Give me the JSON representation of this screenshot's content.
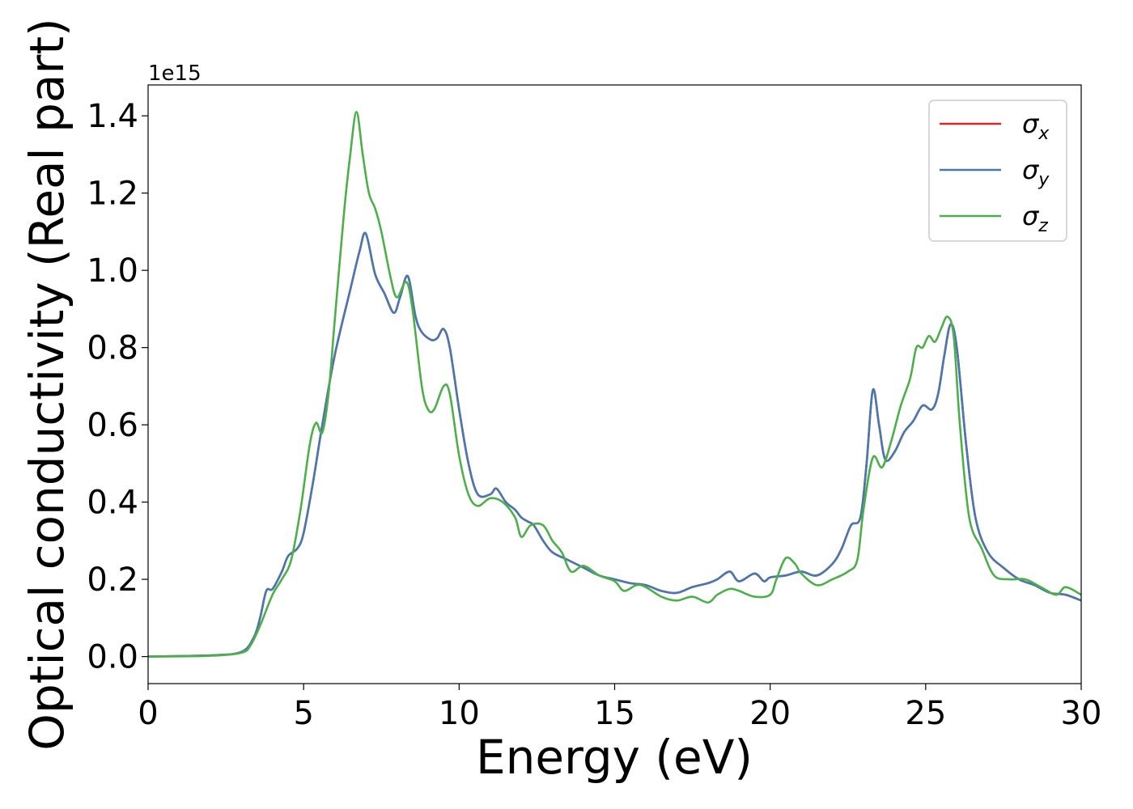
{
  "chart_data": {
    "type": "line",
    "title": "",
    "xlabel": "Energy (eV)",
    "ylabel": "Optical conductivity (Real part)",
    "y_offset_label": "1e15",
    "y_scale": 1000000000000000.0,
    "xlim": [
      0,
      30
    ],
    "ylim": [
      -0.07,
      1.48
    ],
    "x_ticks": [
      0,
      5,
      10,
      15,
      20,
      25,
      30
    ],
    "x_tick_labels": [
      "0",
      "5",
      "10",
      "15",
      "20",
      "25",
      "30"
    ],
    "y_ticks": [
      0.0,
      0.2,
      0.4,
      0.6,
      0.8,
      1.0,
      1.2,
      1.4
    ],
    "y_tick_labels": [
      "0.0",
      "0.2",
      "0.4",
      "0.6",
      "0.8",
      "1.0",
      "1.2",
      "1.4"
    ],
    "grid": false,
    "legend_position": "top-right",
    "series": [
      {
        "name": "σx",
        "symbol": "σ",
        "subscript": "x",
        "color": "#d62728",
        "points": [
          [
            0,
            0
          ],
          [
            2,
            0.003
          ],
          [
            3,
            0.012
          ],
          [
            3.4,
            0.05
          ],
          [
            3.6,
            0.1
          ],
          [
            3.8,
            0.17
          ],
          [
            4.0,
            0.175
          ],
          [
            4.3,
            0.22
          ],
          [
            4.5,
            0.26
          ],
          [
            4.8,
            0.28
          ],
          [
            5.0,
            0.32
          ],
          [
            5.3,
            0.45
          ],
          [
            5.6,
            0.6
          ],
          [
            6.0,
            0.78
          ],
          [
            6.5,
            0.95
          ],
          [
            6.8,
            1.05
          ],
          [
            7.0,
            1.095
          ],
          [
            7.3,
            0.99
          ],
          [
            7.6,
            0.94
          ],
          [
            7.9,
            0.89
          ],
          [
            8.1,
            0.93
          ],
          [
            8.35,
            0.985
          ],
          [
            8.6,
            0.88
          ],
          [
            8.8,
            0.84
          ],
          [
            9.1,
            0.82
          ],
          [
            9.3,
            0.825
          ],
          [
            9.5,
            0.848
          ],
          [
            9.7,
            0.8
          ],
          [
            10.0,
            0.64
          ],
          [
            10.3,
            0.5
          ],
          [
            10.6,
            0.42
          ],
          [
            11.0,
            0.42
          ],
          [
            11.2,
            0.435
          ],
          [
            11.5,
            0.4
          ],
          [
            11.8,
            0.38
          ],
          [
            12.0,
            0.36
          ],
          [
            12.2,
            0.35
          ],
          [
            12.4,
            0.34
          ],
          [
            12.7,
            0.3
          ],
          [
            13.0,
            0.27
          ],
          [
            13.5,
            0.25
          ],
          [
            14.0,
            0.23
          ],
          [
            14.5,
            0.21
          ],
          [
            15.0,
            0.2
          ],
          [
            15.5,
            0.19
          ],
          [
            16.0,
            0.185
          ],
          [
            16.5,
            0.17
          ],
          [
            17.0,
            0.165
          ],
          [
            17.5,
            0.18
          ],
          [
            18.0,
            0.19
          ],
          [
            18.3,
            0.2
          ],
          [
            18.7,
            0.22
          ],
          [
            19.0,
            0.195
          ],
          [
            19.5,
            0.215
          ],
          [
            19.8,
            0.195
          ],
          [
            20.0,
            0.205
          ],
          [
            20.5,
            0.21
          ],
          [
            21.0,
            0.22
          ],
          [
            21.5,
            0.21
          ],
          [
            22.0,
            0.24
          ],
          [
            22.3,
            0.28
          ],
          [
            22.6,
            0.34
          ],
          [
            22.9,
            0.36
          ],
          [
            23.1,
            0.5
          ],
          [
            23.3,
            0.69
          ],
          [
            23.5,
            0.6
          ],
          [
            23.7,
            0.51
          ],
          [
            24.0,
            0.53
          ],
          [
            24.3,
            0.58
          ],
          [
            24.6,
            0.61
          ],
          [
            24.9,
            0.65
          ],
          [
            25.2,
            0.64
          ],
          [
            25.4,
            0.68
          ],
          [
            25.6,
            0.78
          ],
          [
            25.8,
            0.86
          ],
          [
            26.0,
            0.8
          ],
          [
            26.3,
            0.55
          ],
          [
            26.6,
            0.36
          ],
          [
            27.0,
            0.27
          ],
          [
            27.5,
            0.23
          ],
          [
            28.0,
            0.2
          ],
          [
            28.5,
            0.185
          ],
          [
            29.0,
            0.165
          ],
          [
            29.5,
            0.16
          ],
          [
            30.0,
            0.145
          ]
        ]
      },
      {
        "name": "σy",
        "symbol": "σ",
        "subscript": "y",
        "color": "#4878b0",
        "points": [
          [
            0,
            0
          ],
          [
            2,
            0.003
          ],
          [
            3,
            0.012
          ],
          [
            3.4,
            0.05
          ],
          [
            3.6,
            0.1
          ],
          [
            3.8,
            0.17
          ],
          [
            4.0,
            0.175
          ],
          [
            4.3,
            0.22
          ],
          [
            4.5,
            0.26
          ],
          [
            4.8,
            0.28
          ],
          [
            5.0,
            0.32
          ],
          [
            5.3,
            0.45
          ],
          [
            5.6,
            0.6
          ],
          [
            6.0,
            0.78
          ],
          [
            6.5,
            0.95
          ],
          [
            6.8,
            1.05
          ],
          [
            7.0,
            1.095
          ],
          [
            7.3,
            0.99
          ],
          [
            7.6,
            0.94
          ],
          [
            7.9,
            0.89
          ],
          [
            8.1,
            0.93
          ],
          [
            8.35,
            0.985
          ],
          [
            8.6,
            0.88
          ],
          [
            8.8,
            0.84
          ],
          [
            9.1,
            0.82
          ],
          [
            9.3,
            0.825
          ],
          [
            9.5,
            0.848
          ],
          [
            9.7,
            0.8
          ],
          [
            10.0,
            0.64
          ],
          [
            10.3,
            0.5
          ],
          [
            10.6,
            0.42
          ],
          [
            11.0,
            0.42
          ],
          [
            11.2,
            0.435
          ],
          [
            11.5,
            0.4
          ],
          [
            11.8,
            0.38
          ],
          [
            12.0,
            0.36
          ],
          [
            12.2,
            0.35
          ],
          [
            12.4,
            0.34
          ],
          [
            12.7,
            0.3
          ],
          [
            13.0,
            0.27
          ],
          [
            13.5,
            0.25
          ],
          [
            14.0,
            0.23
          ],
          [
            14.5,
            0.21
          ],
          [
            15.0,
            0.2
          ],
          [
            15.5,
            0.19
          ],
          [
            16.0,
            0.185
          ],
          [
            16.5,
            0.17
          ],
          [
            17.0,
            0.165
          ],
          [
            17.5,
            0.18
          ],
          [
            18.0,
            0.19
          ],
          [
            18.3,
            0.2
          ],
          [
            18.7,
            0.22
          ],
          [
            19.0,
            0.195
          ],
          [
            19.5,
            0.215
          ],
          [
            19.8,
            0.195
          ],
          [
            20.0,
            0.205
          ],
          [
            20.5,
            0.21
          ],
          [
            21.0,
            0.22
          ],
          [
            21.5,
            0.21
          ],
          [
            22.0,
            0.24
          ],
          [
            22.3,
            0.28
          ],
          [
            22.6,
            0.34
          ],
          [
            22.9,
            0.36
          ],
          [
            23.1,
            0.5
          ],
          [
            23.3,
            0.69
          ],
          [
            23.5,
            0.6
          ],
          [
            23.7,
            0.51
          ],
          [
            24.0,
            0.53
          ],
          [
            24.3,
            0.58
          ],
          [
            24.6,
            0.61
          ],
          [
            24.9,
            0.65
          ],
          [
            25.2,
            0.64
          ],
          [
            25.4,
            0.68
          ],
          [
            25.6,
            0.78
          ],
          [
            25.8,
            0.86
          ],
          [
            26.0,
            0.8
          ],
          [
            26.3,
            0.55
          ],
          [
            26.6,
            0.36
          ],
          [
            27.0,
            0.27
          ],
          [
            27.5,
            0.23
          ],
          [
            28.0,
            0.2
          ],
          [
            28.5,
            0.185
          ],
          [
            29.0,
            0.165
          ],
          [
            29.5,
            0.16
          ],
          [
            30.0,
            0.145
          ]
        ]
      },
      {
        "name": "σz",
        "symbol": "σ",
        "subscript": "z",
        "color": "#4daf4a",
        "points": [
          [
            0,
            0
          ],
          [
            2,
            0.002
          ],
          [
            3,
            0.01
          ],
          [
            3.3,
            0.03
          ],
          [
            3.6,
            0.08
          ],
          [
            4.0,
            0.16
          ],
          [
            4.3,
            0.2
          ],
          [
            4.6,
            0.25
          ],
          [
            4.9,
            0.38
          ],
          [
            5.2,
            0.55
          ],
          [
            5.4,
            0.605
          ],
          [
            5.6,
            0.58
          ],
          [
            5.8,
            0.68
          ],
          [
            6.0,
            0.87
          ],
          [
            6.3,
            1.15
          ],
          [
            6.5,
            1.3
          ],
          [
            6.7,
            1.41
          ],
          [
            6.9,
            1.3
          ],
          [
            7.1,
            1.2
          ],
          [
            7.3,
            1.16
          ],
          [
            7.5,
            1.1
          ],
          [
            7.8,
            0.98
          ],
          [
            8.0,
            0.93
          ],
          [
            8.3,
            0.97
          ],
          [
            8.5,
            0.9
          ],
          [
            8.8,
            0.7
          ],
          [
            9.0,
            0.64
          ],
          [
            9.2,
            0.64
          ],
          [
            9.5,
            0.7
          ],
          [
            9.7,
            0.68
          ],
          [
            10.0,
            0.52
          ],
          [
            10.3,
            0.42
          ],
          [
            10.6,
            0.39
          ],
          [
            11.0,
            0.41
          ],
          [
            11.4,
            0.4
          ],
          [
            11.8,
            0.36
          ],
          [
            12.0,
            0.31
          ],
          [
            12.3,
            0.34
          ],
          [
            12.7,
            0.34
          ],
          [
            13.0,
            0.3
          ],
          [
            13.3,
            0.27
          ],
          [
            13.6,
            0.22
          ],
          [
            14.0,
            0.235
          ],
          [
            14.5,
            0.21
          ],
          [
            15.0,
            0.195
          ],
          [
            15.3,
            0.17
          ],
          [
            15.7,
            0.185
          ],
          [
            16.0,
            0.18
          ],
          [
            16.5,
            0.155
          ],
          [
            17.0,
            0.145
          ],
          [
            17.5,
            0.155
          ],
          [
            18.0,
            0.14
          ],
          [
            18.3,
            0.16
          ],
          [
            18.7,
            0.175
          ],
          [
            19.0,
            0.17
          ],
          [
            19.5,
            0.155
          ],
          [
            20.0,
            0.16
          ],
          [
            20.2,
            0.2
          ],
          [
            20.5,
            0.255
          ],
          [
            20.8,
            0.24
          ],
          [
            21.0,
            0.215
          ],
          [
            21.5,
            0.185
          ],
          [
            22.0,
            0.2
          ],
          [
            22.5,
            0.22
          ],
          [
            22.8,
            0.25
          ],
          [
            23.0,
            0.38
          ],
          [
            23.3,
            0.515
          ],
          [
            23.6,
            0.49
          ],
          [
            23.9,
            0.56
          ],
          [
            24.2,
            0.65
          ],
          [
            24.5,
            0.72
          ],
          [
            24.7,
            0.8
          ],
          [
            24.9,
            0.8
          ],
          [
            25.1,
            0.83
          ],
          [
            25.3,
            0.815
          ],
          [
            25.5,
            0.85
          ],
          [
            25.7,
            0.88
          ],
          [
            25.9,
            0.83
          ],
          [
            26.1,
            0.6
          ],
          [
            26.4,
            0.36
          ],
          [
            26.8,
            0.28
          ],
          [
            27.2,
            0.21
          ],
          [
            27.7,
            0.2
          ],
          [
            28.2,
            0.2
          ],
          [
            28.7,
            0.18
          ],
          [
            29.2,
            0.16
          ],
          [
            29.5,
            0.18
          ],
          [
            30.0,
            0.16
          ]
        ]
      }
    ]
  }
}
